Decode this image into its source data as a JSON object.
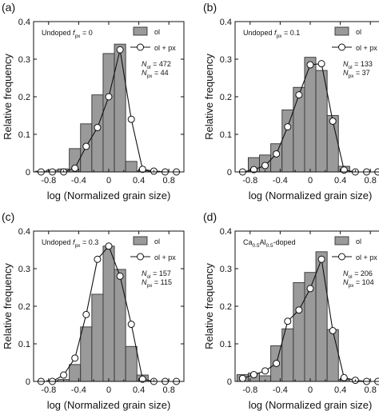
{
  "chart_data": [
    {
      "type": "bar",
      "panel_label": "(a)",
      "annotation": "Undoped f_px = 0",
      "annotation_main": "Undoped ",
      "annotation_f": "f",
      "annotation_sub": "px",
      "annotation_tail": " = 0",
      "counts": [
        {
          "symbol": "N",
          "subscript": "ol",
          "value": "= 472"
        },
        {
          "symbol": "N",
          "subscript": "px",
          "value": "= 44"
        }
      ],
      "xlabel": "log (Normalized grain size)",
      "ylabel": "Relative frequency",
      "xlim": [
        -1.0,
        1.0
      ],
      "ylim": [
        0,
        0.4
      ],
      "xticks": [
        "-0.8",
        "-0.4",
        "0",
        "0.4",
        "0.8"
      ],
      "xtick_values": [
        -0.8,
        -0.4,
        0,
        0.4,
        0.8
      ],
      "yticks": [
        "0",
        "0.1",
        "0.2",
        "0.3",
        "0.4"
      ],
      "ytick_values": [
        0,
        0.1,
        0.2,
        0.3,
        0.4
      ],
      "bar_width": 0.15,
      "bars": {
        "name": "ol",
        "x": [
          -0.9,
          -0.75,
          -0.6,
          -0.45,
          -0.3,
          -0.15,
          0,
          0.15,
          0.3,
          0.45,
          0.6
        ],
        "values": [
          0.002,
          0.005,
          0.008,
          0.062,
          0.128,
          0.205,
          0.315,
          0.34,
          0.028,
          0.003,
          0.002
        ]
      },
      "line": {
        "name": "ol + px",
        "x": [
          -0.9,
          -0.75,
          -0.6,
          -0.45,
          -0.3,
          -0.15,
          0,
          0.15,
          0.3,
          0.45,
          0.6,
          0.75,
          0.9
        ],
        "values": [
          0.0,
          0.0,
          0.0,
          0.01,
          0.068,
          0.118,
          0.2,
          0.325,
          0.14,
          0.007,
          0.002,
          0.0,
          0.0
        ]
      }
    },
    {
      "type": "bar",
      "panel_label": "(b)",
      "annotation": "Undoped f_px = 0.1",
      "annotation_main": "Undoped ",
      "annotation_f": "f",
      "annotation_sub": "px",
      "annotation_tail": " = 0.1",
      "counts": [
        {
          "symbol": "N",
          "subscript": "ol",
          "value": "= 133"
        },
        {
          "symbol": "N",
          "subscript": "px",
          "value": "= 37"
        }
      ],
      "xlabel": "log (Normalized grain size)",
      "ylabel": "Relative frequency",
      "xlim": [
        -1.0,
        1.0
      ],
      "ylim": [
        0,
        0.4
      ],
      "xticks": [
        "-0.8",
        "-0.4",
        "0",
        "0.4",
        "0.8"
      ],
      "xtick_values": [
        -0.8,
        -0.4,
        0,
        0.4,
        0.8
      ],
      "yticks": [
        "0",
        "0.1",
        "0.2",
        "0.3",
        "0.4"
      ],
      "ytick_values": [
        0,
        0.1,
        0.2,
        0.3,
        0.4
      ],
      "bar_width": 0.15,
      "bars": {
        "name": "ol",
        "x": [
          -0.75,
          -0.6,
          -0.45,
          -0.3,
          -0.15,
          0,
          0.15,
          0.3,
          0.45
        ],
        "values": [
          0.038,
          0.045,
          0.075,
          0.165,
          0.225,
          0.305,
          0.27,
          0.15,
          0.015
        ]
      },
      "line": {
        "name": "ol + px",
        "x": [
          -0.9,
          -0.75,
          -0.6,
          -0.45,
          -0.3,
          -0.15,
          0,
          0.15,
          0.3,
          0.45,
          0.6,
          0.75,
          0.9
        ],
        "values": [
          0.0,
          0.006,
          0.017,
          0.048,
          0.12,
          0.205,
          0.285,
          0.288,
          0.135,
          0.005,
          0.0,
          0.0,
          0.0
        ]
      }
    },
    {
      "type": "bar",
      "panel_label": "(c)",
      "annotation": "Undoped f_px = 0.3",
      "annotation_main": "Undoped ",
      "annotation_f": "f",
      "annotation_sub": "px",
      "annotation_tail": " = 0.3",
      "counts": [
        {
          "symbol": "N",
          "subscript": "ol",
          "value": "= 157"
        },
        {
          "symbol": "N",
          "subscript": "px",
          "value": "= 115"
        }
      ],
      "xlabel": "log (Normalized grain size)",
      "ylabel": "Relative frequency",
      "xlim": [
        -1.0,
        1.0
      ],
      "ylim": [
        0,
        0.4
      ],
      "xticks": [
        "-0.8",
        "-0.4",
        "0",
        "0.4",
        "0.8"
      ],
      "xtick_values": [
        -0.8,
        -0.4,
        0,
        0.4,
        0.8
      ],
      "yticks": [
        "0",
        "0.1",
        "0.2",
        "0.3",
        "0.4"
      ],
      "ytick_values": [
        0,
        0.1,
        0.2,
        0.3,
        0.4
      ],
      "bar_width": 0.15,
      "bars": {
        "name": "ol",
        "x": [
          -0.75,
          -0.6,
          -0.45,
          -0.3,
          -0.15,
          0,
          0.15,
          0.3,
          0.45
        ],
        "values": [
          0.002,
          0.005,
          0.045,
          0.145,
          0.232,
          0.36,
          0.298,
          0.093,
          0.017
        ]
      },
      "line": {
        "name": "ol + px",
        "x": [
          -0.9,
          -0.75,
          -0.6,
          -0.45,
          -0.3,
          -0.15,
          0,
          0.15,
          0.3,
          0.45,
          0.6,
          0.75,
          0.9
        ],
        "values": [
          0.0,
          0.0,
          0.017,
          0.062,
          0.178,
          0.325,
          0.36,
          0.28,
          0.152,
          0.006,
          0.0,
          0.0,
          0.0
        ]
      }
    },
    {
      "type": "bar",
      "panel_label": "(d)",
      "annotation": "Ca0.5Al0.5-doped",
      "annotation_parts": [
        "Ca",
        "0.5",
        "Al",
        "0.5",
        "-doped"
      ],
      "counts": [
        {
          "symbol": "N",
          "subscript": "ol",
          "value": "= 206"
        },
        {
          "symbol": "N",
          "subscript": "px",
          "value": "= 104"
        }
      ],
      "xlabel": "log (Normalized grain size)",
      "ylabel": "Relative frequency",
      "xlim": [
        -1.0,
        1.0
      ],
      "ylim": [
        0,
        0.4
      ],
      "xticks": [
        "-0.8",
        "-0.4",
        "0",
        "0.4",
        "0.8"
      ],
      "xtick_values": [
        -0.8,
        -0.4,
        0,
        0.4,
        0.8
      ],
      "yticks": [
        "0",
        "0.1",
        "0.2",
        "0.3",
        "0.4"
      ],
      "ytick_values": [
        0,
        0.1,
        0.2,
        0.3,
        0.4
      ],
      "bar_width": 0.15,
      "bars": {
        "name": "ol",
        "x": [
          -0.9,
          -0.75,
          -0.6,
          -0.45,
          -0.3,
          -0.15,
          0,
          0.15,
          0.3,
          0.45
        ],
        "values": [
          0.018,
          0.022,
          0.015,
          0.095,
          0.14,
          0.263,
          0.29,
          0.345,
          0.138,
          0.005
        ]
      },
      "line": {
        "name": "ol + px",
        "x": [
          -0.9,
          -0.75,
          -0.6,
          -0.45,
          -0.3,
          -0.15,
          0,
          0.15,
          0.3,
          0.45,
          0.6,
          0.75,
          0.9
        ],
        "values": [
          0.008,
          0.018,
          0.028,
          0.048,
          0.16,
          0.19,
          0.247,
          0.325,
          0.135,
          0.01,
          0.003,
          0.0,
          0.0
        ]
      }
    }
  ],
  "colors": {
    "bar_fill": "#9a9a9a",
    "bar_stroke": "#333333",
    "line": "#111111",
    "marker_fill": "#ffffff"
  }
}
